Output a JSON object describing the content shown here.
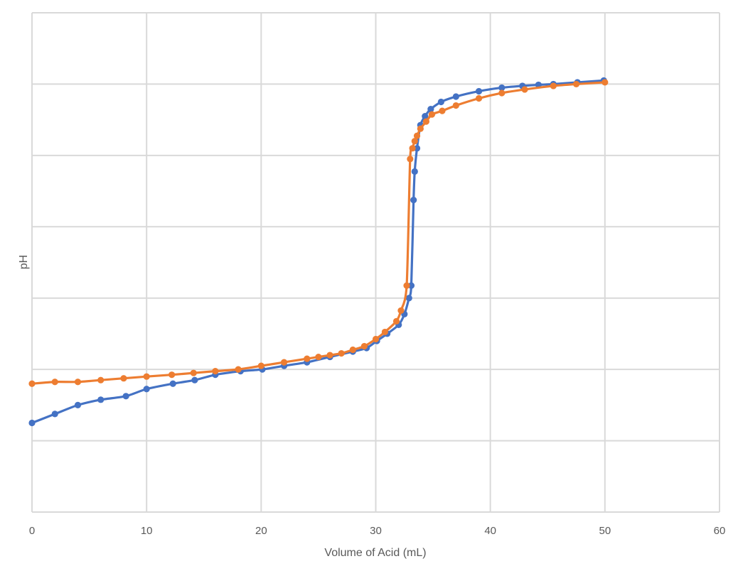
{
  "chart_data": {
    "type": "scatter",
    "title": "",
    "xlabel": "Volume of Acid (mL)",
    "ylabel": "pH",
    "xlim": [
      0,
      60
    ],
    "ylim": [
      0,
      14
    ],
    "x_ticks": [
      "0",
      "10",
      "20",
      "30",
      "40",
      "50",
      "60"
    ],
    "y_tick_labels_shown": false,
    "grid": true,
    "legend": "none",
    "series": [
      {
        "color": "#4472c4",
        "points": [
          [
            0,
            2.5
          ],
          [
            2,
            2.75
          ],
          [
            4,
            3.0
          ],
          [
            6,
            3.15
          ],
          [
            8.2,
            3.25
          ],
          [
            10,
            3.45
          ],
          [
            12.3,
            3.6
          ],
          [
            14.2,
            3.7
          ],
          [
            16,
            3.85
          ],
          [
            18.2,
            3.95
          ],
          [
            20.1,
            4.0
          ],
          [
            22,
            4.1
          ],
          [
            24,
            4.2
          ],
          [
            26,
            4.35
          ],
          [
            28,
            4.5
          ],
          [
            29.2,
            4.6
          ],
          [
            30.1,
            4.8
          ],
          [
            31,
            5.0
          ],
          [
            32,
            5.25
          ],
          [
            32.5,
            5.55
          ],
          [
            32.9,
            6.0
          ],
          [
            33.1,
            6.35
          ],
          [
            33.3,
            8.75
          ],
          [
            33.4,
            9.55
          ],
          [
            33.6,
            10.2
          ],
          [
            33.9,
            10.85
          ],
          [
            34.3,
            11.1
          ],
          [
            34.8,
            11.3
          ],
          [
            35.7,
            11.5
          ],
          [
            37,
            11.65
          ],
          [
            39,
            11.8
          ],
          [
            41,
            11.9
          ],
          [
            42.8,
            11.95
          ],
          [
            44.2,
            11.98
          ],
          [
            45.5,
            12.0
          ],
          [
            47.6,
            12.05
          ],
          [
            49.9,
            12.1
          ]
        ]
      },
      {
        "color": "#ed7d31",
        "points": [
          [
            0,
            3.6
          ],
          [
            2,
            3.65
          ],
          [
            4,
            3.65
          ],
          [
            6,
            3.7
          ],
          [
            8,
            3.75
          ],
          [
            10,
            3.8
          ],
          [
            12.2,
            3.85
          ],
          [
            14.1,
            3.9
          ],
          [
            16,
            3.95
          ],
          [
            18,
            4.0
          ],
          [
            20,
            4.1
          ],
          [
            22,
            4.2
          ],
          [
            24,
            4.3
          ],
          [
            25,
            4.35
          ],
          [
            26,
            4.4
          ],
          [
            27,
            4.45
          ],
          [
            28,
            4.55
          ],
          [
            29,
            4.65
          ],
          [
            30,
            4.85
          ],
          [
            30.8,
            5.05
          ],
          [
            31.8,
            5.35
          ],
          [
            32.2,
            5.65
          ],
          [
            32.7,
            6.35
          ],
          [
            33.0,
            9.9
          ],
          [
            33.2,
            10.2
          ],
          [
            33.4,
            10.4
          ],
          [
            33.6,
            10.55
          ],
          [
            33.9,
            10.75
          ],
          [
            34.4,
            10.95
          ],
          [
            34.9,
            11.15
          ],
          [
            35.8,
            11.25
          ],
          [
            37,
            11.4
          ],
          [
            39,
            11.6
          ],
          [
            41,
            11.75
          ],
          [
            43,
            11.85
          ],
          [
            45.5,
            11.95
          ],
          [
            47.5,
            12.0
          ],
          [
            50,
            12.05
          ]
        ]
      }
    ]
  }
}
